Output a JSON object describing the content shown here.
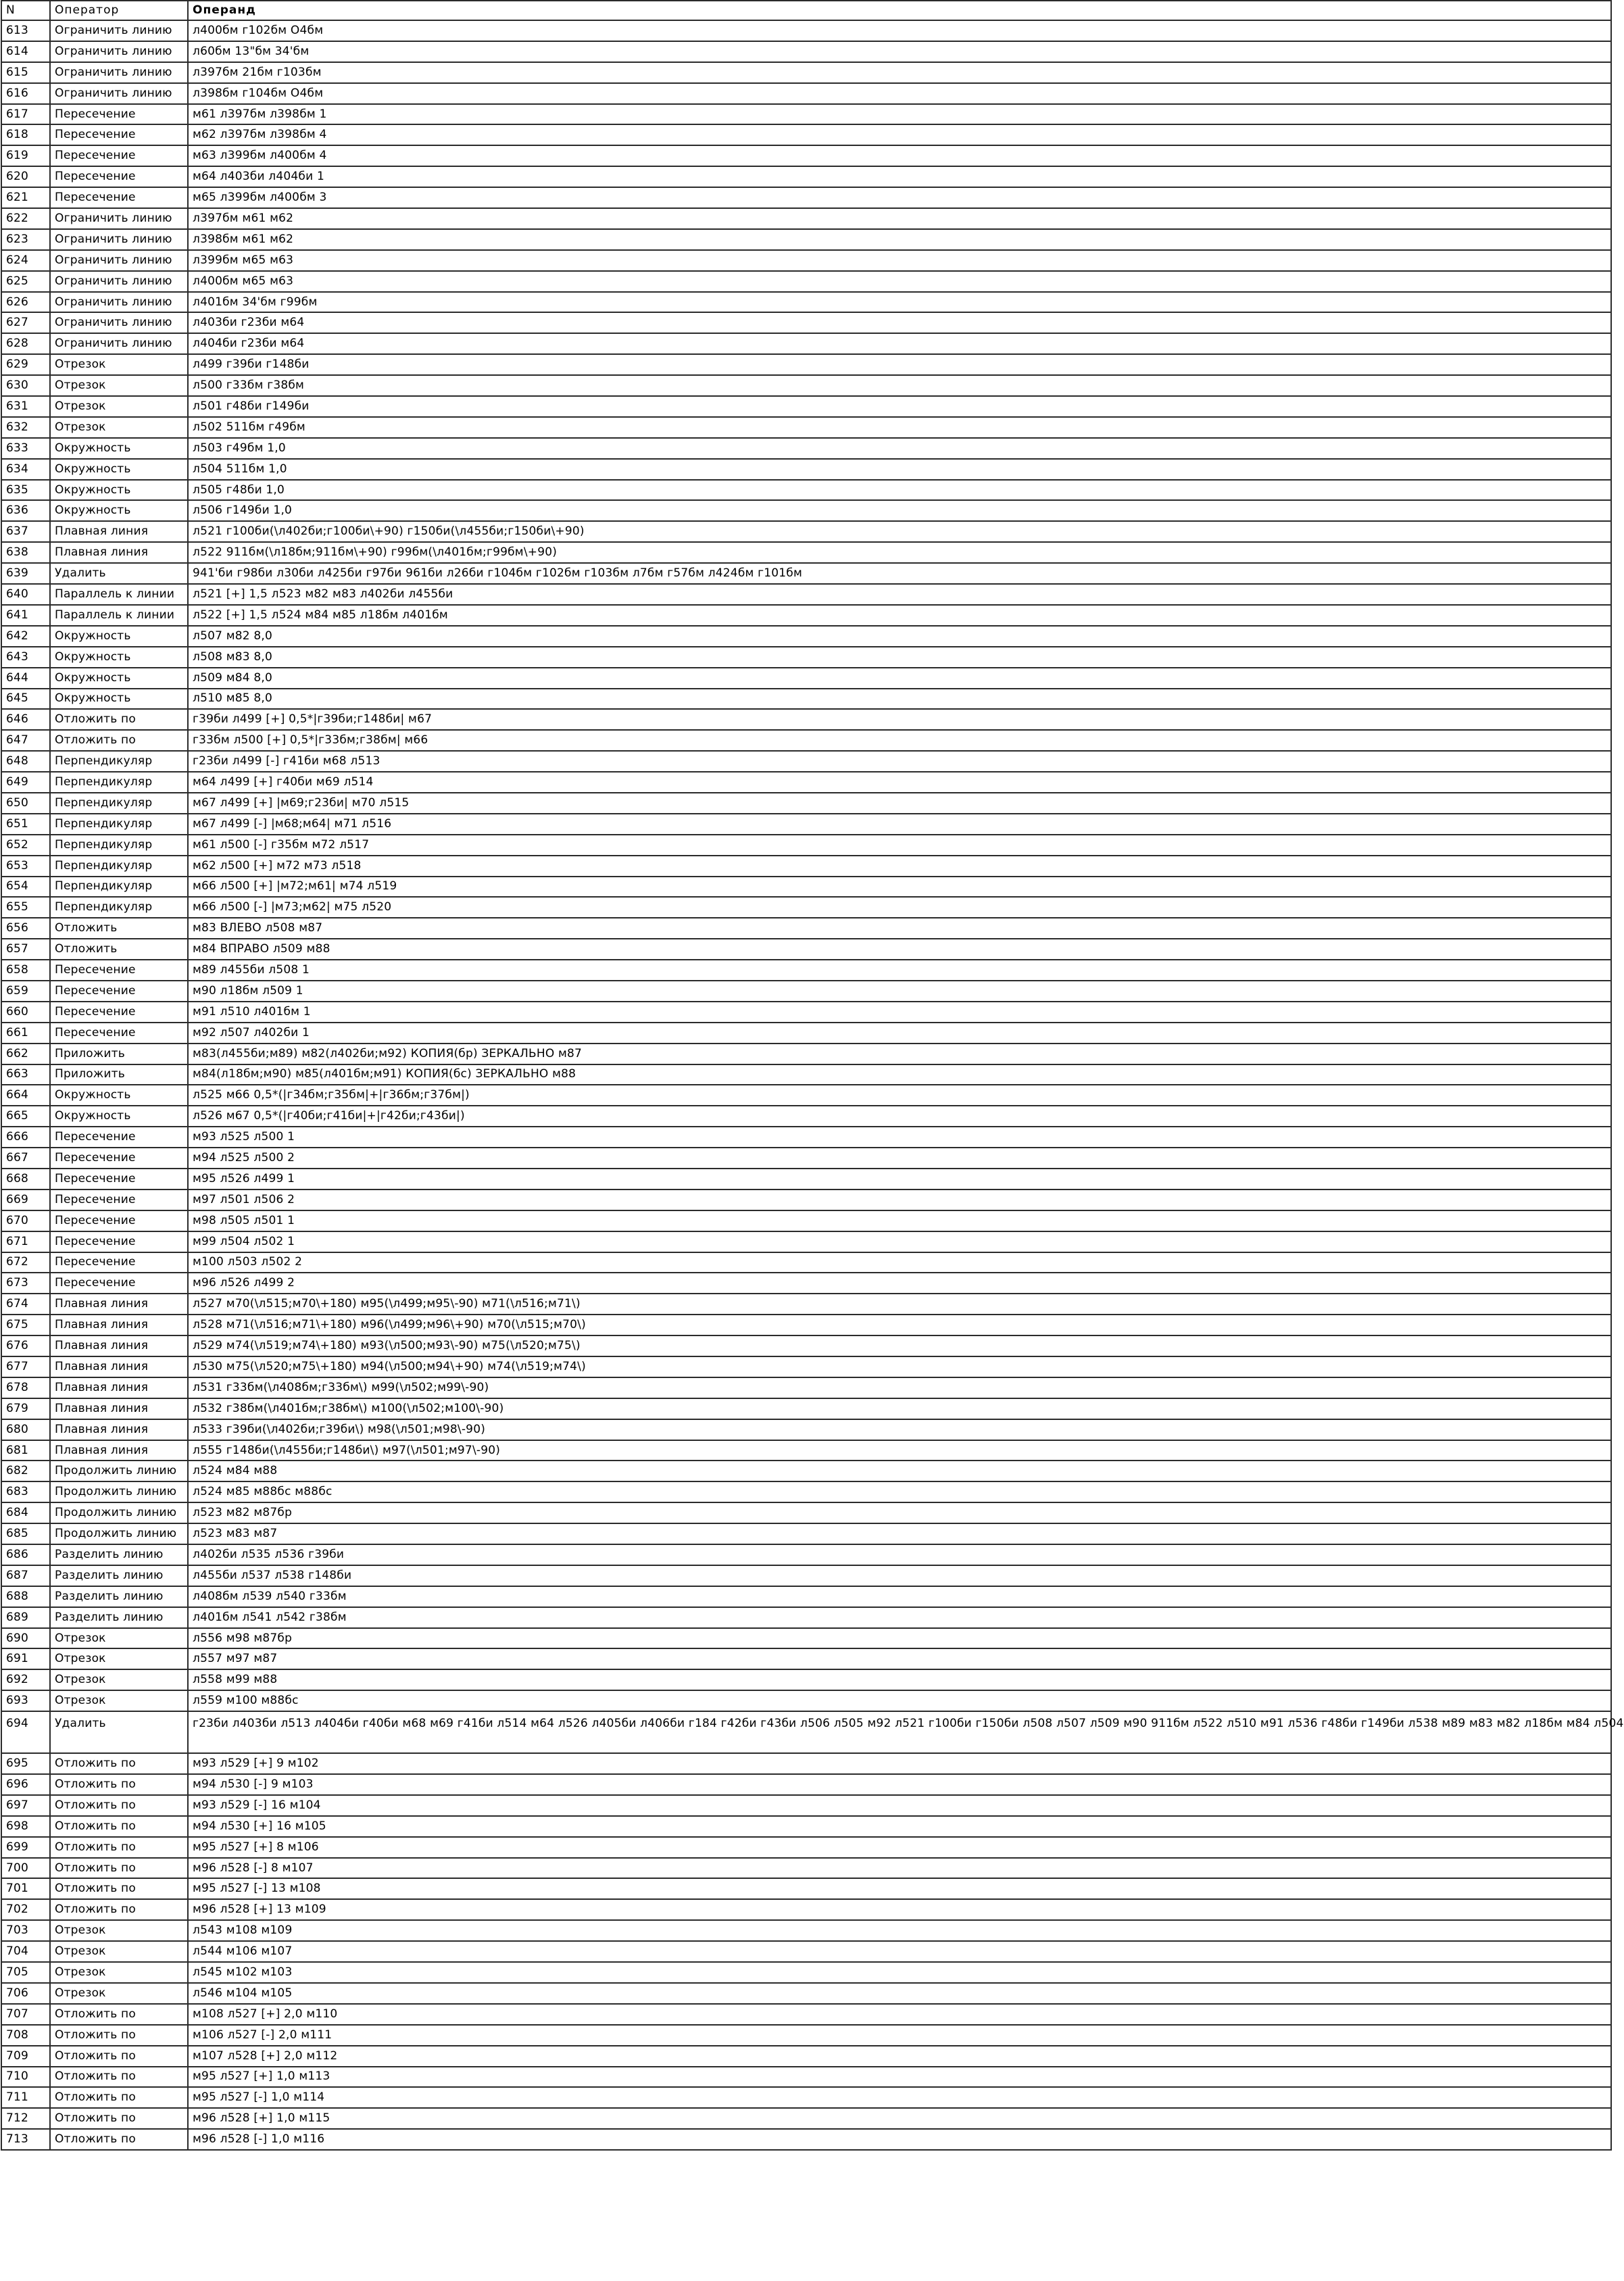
{
  "header": {
    "n": "N",
    "operator": "Оператор",
    "operand": "Операнд"
  },
  "rows": [
    {
      "n": "613",
      "operator": "Ограничить линию",
      "operand": "л400бм г102бм О4бм"
    },
    {
      "n": "614",
      "operator": "Ограничить линию",
      "operand": "л60бм 13\"бм 34'бм"
    },
    {
      "n": "615",
      "operator": "Ограничить линию",
      "operand": "л397бм 21бм г103бм"
    },
    {
      "n": "616",
      "operator": "Ограничить линию",
      "operand": "л398бм г104бм О4бм"
    },
    {
      "n": "617",
      "operator": "Пересечение",
      "operand": "м61 л397бм л398бм 1"
    },
    {
      "n": "618",
      "operator": "Пересечение",
      "operand": "м62 л397бм л398бм 4"
    },
    {
      "n": "619",
      "operator": "Пересечение",
      "operand": "м63 л399бм л400бм 4"
    },
    {
      "n": "620",
      "operator": "Пересечение",
      "operand": "м64 л403би л404би 1"
    },
    {
      "n": "621",
      "operator": "Пересечение",
      "operand": "м65 л399бм л400бм 3"
    },
    {
      "n": "622",
      "operator": "Ограничить линию",
      "operand": "л397бм м61 м62"
    },
    {
      "n": "623",
      "operator": "Ограничить линию",
      "operand": "л398бм м61 м62"
    },
    {
      "n": "624",
      "operator": "Ограничить линию",
      "operand": "л399бм м65 м63"
    },
    {
      "n": "625",
      "operator": "Ограничить линию",
      "operand": "л400бм м65 м63"
    },
    {
      "n": "626",
      "operator": "Ограничить линию",
      "operand": "л401бм 34'бм г99бм"
    },
    {
      "n": "627",
      "operator": "Ограничить линию",
      "operand": "л403би г23би м64"
    },
    {
      "n": "628",
      "operator": "Ограничить линию",
      "operand": "л404би г23би м64"
    },
    {
      "n": "629",
      "operator": "Отрезок",
      "operand": "л499 г39би г148би"
    },
    {
      "n": "630",
      "operator": "Отрезок",
      "operand": "л500 г33бм г38бм"
    },
    {
      "n": "631",
      "operator": "Отрезок",
      "operand": "л501 г48би г149би"
    },
    {
      "n": "632",
      "operator": "Отрезок",
      "operand": "л502 511бм г49бм"
    },
    {
      "n": "633",
      "operator": "Окружность",
      "operand": "л503 г49бм 1,0"
    },
    {
      "n": "634",
      "operator": "Окружность",
      "operand": "л504 511бм 1,0"
    },
    {
      "n": "635",
      "operator": "Окружность",
      "operand": "л505 г48би 1,0"
    },
    {
      "n": "636",
      "operator": "Окружность",
      "operand": "л506 г149би 1,0"
    },
    {
      "n": "637",
      "operator": "Плавная линия",
      "operand": "л521 г100би(\\л402би;г100би\\+90) г150би(\\л455би;г150би\\+90)"
    },
    {
      "n": "638",
      "operator": "Плавная линия",
      "operand": "л522 911бм(\\л18бм;911бм\\+90) г99бм(\\л401бм;г99бм\\+90)"
    },
    {
      "n": "639",
      "operator": "Удалить",
      "operand": "941'би г98би л30би л425би г97би 961би л26би г104бм г102бм г103бм л7бм г57бм л424бм г101бм"
    },
    {
      "n": "640",
      "operator": "Параллель к линии",
      "operand": "л521 [+] 1,5 л523 м82 м83 л402би л455би"
    },
    {
      "n": "641",
      "operator": "Параллель к линии",
      "operand": "л522 [+] 1,5 л524 м84 м85 л18бм л401бм"
    },
    {
      "n": "642",
      "operator": "Окружность",
      "operand": "л507 м82 8,0"
    },
    {
      "n": "643",
      "operator": "Окружность",
      "operand": "л508 м83 8,0"
    },
    {
      "n": "644",
      "operator": "Окружность",
      "operand": "л509 м84 8,0"
    },
    {
      "n": "645",
      "operator": "Окружность",
      "operand": "л510 м85 8,0"
    },
    {
      "n": "646",
      "operator": "Отложить по",
      "operand": "г39би л499 [+] 0,5*|г39би;г148би| м67"
    },
    {
      "n": "647",
      "operator": "Отложить по",
      "operand": "г33бм л500 [+] 0,5*|г33бм;г38бм| м66"
    },
    {
      "n": "648",
      "operator": "Перпендикуляр",
      "operand": "г23би л499 [-] г41би м68 л513"
    },
    {
      "n": "649",
      "operator": "Перпендикуляр",
      "operand": "м64 л499 [+] г40би м69 л514"
    },
    {
      "n": "650",
      "operator": "Перпендикуляр",
      "operand": "м67 л499 [+] |м69;г23би| м70 л515"
    },
    {
      "n": "651",
      "operator": "Перпендикуляр",
      "operand": "м67 л499 [-] |м68;м64| м71 л516"
    },
    {
      "n": "652",
      "operator": "Перпендикуляр",
      "operand": "м61 л500 [-] г35бм м72 л517"
    },
    {
      "n": "653",
      "operator": "Перпендикуляр",
      "operand": "м62 л500 [+] м72 м73 л518"
    },
    {
      "n": "654",
      "operator": "Перпендикуляр",
      "operand": "м66 л500 [+] |м72;м61| м74 л519"
    },
    {
      "n": "655",
      "operator": "Перпендикуляр",
      "operand": "м66 л500 [-] |м73;м62| м75 л520"
    },
    {
      "n": "656",
      "operator": "Отложить",
      "operand": "м83 ВЛЕВО л508 м87"
    },
    {
      "n": "657",
      "operator": "Отложить",
      "operand": "м84 ВПРАВО л509 м88"
    },
    {
      "n": "658",
      "operator": "Пересечение",
      "operand": "м89 л455би л508 1"
    },
    {
      "n": "659",
      "operator": "Пересечение",
      "operand": "м90 л18бм л509 1"
    },
    {
      "n": "660",
      "operator": "Пересечение",
      "operand": "м91 л510 л401бм 1"
    },
    {
      "n": "661",
      "operator": "Пересечение",
      "operand": "м92 л507 л402би 1"
    },
    {
      "n": "662",
      "operator": "Приложить",
      "operand": "м83(л455би;м89) м82(л402би;м92) КОПИЯ(бр) ЗЕРКАЛЬНО м87"
    },
    {
      "n": "663",
      "operator": "Приложить",
      "operand": "м84(л18бм;м90) м85(л401бм;м91) КОПИЯ(бс) ЗЕРКАЛЬНО м88"
    },
    {
      "n": "664",
      "operator": "Окружность",
      "operand": "л525 м66 0,5*(|г34бм;г35бм|+|г36бм;г37бм|)"
    },
    {
      "n": "665",
      "operator": "Окружность",
      "operand": "л526 м67 0,5*(|г40би;г41би|+|г42би;г43би|)"
    },
    {
      "n": "666",
      "operator": "Пересечение",
      "operand": "м93 л525 л500 1"
    },
    {
      "n": "667",
      "operator": "Пересечение",
      "operand": "м94 л525 л500 2"
    },
    {
      "n": "668",
      "operator": "Пересечение",
      "operand": "м95 л526 л499 1"
    },
    {
      "n": "669",
      "operator": "Пересечение",
      "operand": "м97 л501 л506 2"
    },
    {
      "n": "670",
      "operator": "Пересечение",
      "operand": "м98 л505 л501 1"
    },
    {
      "n": "671",
      "operator": "Пересечение",
      "operand": "м99 л504 л502 1"
    },
    {
      "n": "672",
      "operator": "Пересечение",
      "operand": "м100 л503 л502 2"
    },
    {
      "n": "673",
      "operator": "Пересечение",
      "operand": "м96 л526 л499 2"
    },
    {
      "n": "674",
      "operator": "Плавная линия",
      "operand": "л527 м70(\\л515;м70\\+180) м95(\\л499;м95\\-90) м71(\\л516;м71\\)"
    },
    {
      "n": "675",
      "operator": "Плавная линия",
      "operand": "л528 м71(\\л516;м71\\+180) м96(\\л499;м96\\+90) м70(\\л515;м70\\)"
    },
    {
      "n": "676",
      "operator": "Плавная линия",
      "operand": "л529 м74(\\л519;м74\\+180) м93(\\л500;м93\\-90) м75(\\л520;м75\\)"
    },
    {
      "n": "677",
      "operator": "Плавная линия",
      "operand": "л530 м75(\\л520;м75\\+180) м94(\\л500;м94\\+90) м74(\\л519;м74\\)"
    },
    {
      "n": "678",
      "operator": "Плавная линия",
      "operand": "л531 г33бм(\\л408бм;г33бм\\) м99(\\л502;м99\\-90)"
    },
    {
      "n": "679",
      "operator": "Плавная линия",
      "operand": "л532 г38бм(\\л401бм;г38бм\\) м100(\\л502;м100\\-90)"
    },
    {
      "n": "680",
      "operator": "Плавная линия",
      "operand": "л533 г39би(\\л402би;г39би\\) м98(\\л501;м98\\-90)"
    },
    {
      "n": "681",
      "operator": "Плавная линия",
      "operand": "л555 г148би(\\л455би;г148би\\) м97(\\л501;м97\\-90)"
    },
    {
      "n": "682",
      "operator": "Продолжить линию",
      "operand": "л524 м84 м88"
    },
    {
      "n": "683",
      "operator": "Продолжить линию",
      "operand": "л524 м85 м88бс м88бс"
    },
    {
      "n": "684",
      "operator": "Продолжить линию",
      "operand": "л523 м82 м87бр"
    },
    {
      "n": "685",
      "operator": "Продолжить линию",
      "operand": "л523 м83 м87"
    },
    {
      "n": "686",
      "operator": "Разделить линию",
      "operand": "л402би л535 л536 г39би"
    },
    {
      "n": "687",
      "operator": "Разделить линию",
      "operand": "л455би л537 л538 г148би"
    },
    {
      "n": "688",
      "operator": "Разделить линию",
      "operand": "л408бм л539 л540 г33бм"
    },
    {
      "n": "689",
      "operator": "Разделить линию",
      "operand": "л401бм л541 л542 г38бм"
    },
    {
      "n": "690",
      "operator": "Отрезок",
      "operand": "л556 м98 м87бр"
    },
    {
      "n": "691",
      "operator": "Отрезок",
      "operand": "л557 м97 м87"
    },
    {
      "n": "692",
      "operator": "Отрезок",
      "operand": "л558 м99 м88"
    },
    {
      "n": "693",
      "operator": "Отрезок",
      "operand": "л559 м100 м88бс"
    },
    {
      "n": "694",
      "operator": "Удалить",
      "operand": "г23би л403би л513 л404би г40би м68 м69 г41би л514 м64 л526 л405би л406би г184 г42би г43би л506 л505 м92 л521 г100би г150би л508 л507 л509 м90 911бм л522 л510 м91 л536 г48би г149би л538 м89 м83 м82 л18бм м84 л504",
      "tall": true
    },
    {
      "n": "695",
      "operator": "Отложить по",
      "operand": "м93 л529 [+] 9 м102"
    },
    {
      "n": "696",
      "operator": "Отложить по",
      "operand": "м94 л530 [-] 9 м103"
    },
    {
      "n": "697",
      "operator": "Отложить по",
      "operand": "м93 л529 [-] 16 м104"
    },
    {
      "n": "698",
      "operator": "Отложить по",
      "operand": "м94 л530 [+] 16 м105"
    },
    {
      "n": "699",
      "operator": "Отложить по",
      "operand": "м95 л527 [+] 8 м106"
    },
    {
      "n": "700",
      "operator": "Отложить по",
      "operand": "м96 л528 [-] 8 м107"
    },
    {
      "n": "701",
      "operator": "Отложить по",
      "operand": "м95 л527 [-] 13 м108"
    },
    {
      "n": "702",
      "operator": "Отложить по",
      "operand": "м96 л528 [+] 13 м109"
    },
    {
      "n": "703",
      "operator": "Отрезок",
      "operand": "л543 м108 м109"
    },
    {
      "n": "704",
      "operator": "Отрезок",
      "operand": "л544 м106 м107"
    },
    {
      "n": "705",
      "operator": "Отрезок",
      "operand": "л545 м102 м103"
    },
    {
      "n": "706",
      "operator": "Отрезок",
      "operand": "л546 м104 м105"
    },
    {
      "n": "707",
      "operator": "Отложить по",
      "operand": "м108 л527 [+] 2,0 м110"
    },
    {
      "n": "708",
      "operator": "Отложить по",
      "operand": "м106 л527 [-] 2,0 м111"
    },
    {
      "n": "709",
      "operator": "Отложить по",
      "operand": "м107 л528 [+] 2,0 м112"
    },
    {
      "n": "710",
      "operator": "Отложить по",
      "operand": "м95 л527 [+] 1,0 м113"
    },
    {
      "n": "711",
      "operator": "Отложить по",
      "operand": "м95 л527 [-] 1,0 м114"
    },
    {
      "n": "712",
      "operator": "Отложить по",
      "operand": "м96 л528 [+] 1,0 м115"
    },
    {
      "n": "713",
      "operator": "Отложить по",
      "operand": "м96 л528 [-] 1,0 м116"
    }
  ]
}
